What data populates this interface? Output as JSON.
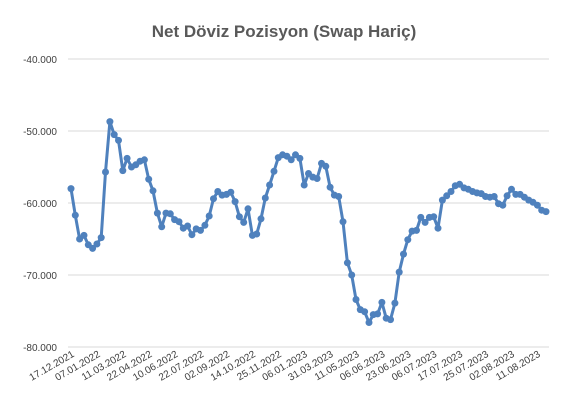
{
  "chart_data": {
    "type": "line",
    "title": "Net Döviz Pozisyon (Swap Hariç)",
    "xlabel": "",
    "ylabel": "",
    "ylim": [
      -80000,
      -40000
    ],
    "yticks": [
      -40000,
      -50000,
      -60000,
      -70000,
      -80000
    ],
    "ytick_labels": [
      "-40.000",
      "-50.000",
      "-60.000",
      "-70.000",
      "-80.000"
    ],
    "xtick_labels": [
      "17.12.2021",
      "07.01.2022",
      "11.03.2022",
      "22.04.2022",
      "10.06.2022",
      "22.07.2022",
      "02.09.2022",
      "14.10.2022",
      "25.11.2022",
      "06.01.2023",
      "31.03.2023",
      "11.05.2023",
      "06.06.2023",
      "23.06.2023",
      "06.07.2023",
      "17.07.2023",
      "25.07.2023",
      "02.08.2023",
      "11.08.2023"
    ],
    "grid": true,
    "legend": "none",
    "series_color": "#4f81bd",
    "series": [
      {
        "values": [
          -58000,
          -61700,
          -65000,
          -64500,
          -65800,
          -66300,
          -65700,
          -64800,
          -55700,
          -48700,
          -50500,
          -51300,
          -55500,
          -53800,
          -55000,
          -54700,
          -54200,
          -54000,
          -56700,
          -58300,
          -61400,
          -63300,
          -61400,
          -61500,
          -62300,
          -62600,
          -63500,
          -63200,
          -64400,
          -63600,
          -63800,
          -63100,
          -61800,
          -59400,
          -58400,
          -58900,
          -58800,
          -58500,
          -59800,
          -61900,
          -62700,
          -60800,
          -64500,
          -64300,
          -62200,
          -59300,
          -57500,
          -55600,
          -53700,
          -53300,
          -53500,
          -54000,
          -53300,
          -53800,
          -57500,
          -55900,
          -56400,
          -56600,
          -54500,
          -54900,
          -57800,
          -58900,
          -59100,
          -62600,
          -68300,
          -70000,
          -73400,
          -74800,
          -75100,
          -76600,
          -75500,
          -75400,
          -73800,
          -76000,
          -76200,
          -73900,
          -69600,
          -67100,
          -65100,
          -63900,
          -63800,
          -62000,
          -62700,
          -62000,
          -61900,
          -63500,
          -59600,
          -59000,
          -58400,
          -57600,
          -57400,
          -57900,
          -58100,
          -58400,
          -58600,
          -58700,
          -59100,
          -59200,
          -59100,
          -60100,
          -60300,
          -59000,
          -58100,
          -58800,
          -58800,
          -59200,
          -59600,
          -59900,
          -60300,
          -61000,
          -61200
        ]
      }
    ]
  }
}
